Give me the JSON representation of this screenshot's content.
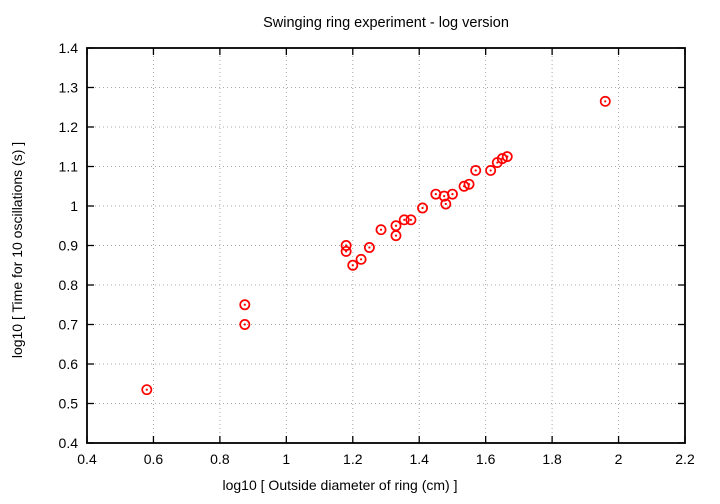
{
  "page": {
    "background": "#ffffff"
  },
  "chart_data": {
    "type": "scatter",
    "title": "Swinging ring experiment - log version",
    "xlabel": "log10 [ Outside diameter of ring (cm) ]",
    "ylabel": "log10 [ Time for 10 oscillations (s) ]",
    "xlim": [
      0.4,
      2.2
    ],
    "ylim": [
      0.4,
      1.4
    ],
    "xticks": [
      0.4,
      0.6,
      0.8,
      1.0,
      1.2,
      1.4,
      1.6,
      1.8,
      2.0,
      2.2
    ],
    "xtick_labels": [
      "0.4",
      "0.6",
      "0.8",
      "1",
      "1.2",
      "1.4",
      "1.6",
      "1.8",
      "2",
      "2.2"
    ],
    "yticks": [
      0.4,
      0.5,
      0.6,
      0.7,
      0.8,
      0.9,
      1.0,
      1.1,
      1.2,
      1.3,
      1.4
    ],
    "ytick_labels": [
      "0.4",
      "0.5",
      "0.6",
      "0.7",
      "0.8",
      "0.9",
      "1",
      "1.1",
      "1.2",
      "1.3",
      "1.4"
    ],
    "grid": true,
    "legend_position": "none",
    "grid_color": "#a8a8a8",
    "axis_color": "#000000",
    "marker": {
      "style": "open-circle-with-center-dot",
      "color": "#ff0000"
    },
    "points": [
      [
        0.58,
        0.535
      ],
      [
        0.875,
        0.75
      ],
      [
        0.875,
        0.7
      ],
      [
        1.18,
        0.9
      ],
      [
        1.18,
        0.885
      ],
      [
        1.2,
        0.85
      ],
      [
        1.225,
        0.865
      ],
      [
        1.25,
        0.895
      ],
      [
        1.285,
        0.94
      ],
      [
        1.33,
        0.95
      ],
      [
        1.33,
        0.925
      ],
      [
        1.355,
        0.965
      ],
      [
        1.375,
        0.965
      ],
      [
        1.41,
        0.995
      ],
      [
        1.45,
        1.03
      ],
      [
        1.475,
        1.025
      ],
      [
        1.48,
        1.005
      ],
      [
        1.5,
        1.03
      ],
      [
        1.535,
        1.05
      ],
      [
        1.55,
        1.055
      ],
      [
        1.57,
        1.09
      ],
      [
        1.615,
        1.09
      ],
      [
        1.635,
        1.11
      ],
      [
        1.65,
        1.12
      ],
      [
        1.665,
        1.125
      ],
      [
        1.96,
        1.265
      ]
    ]
  }
}
